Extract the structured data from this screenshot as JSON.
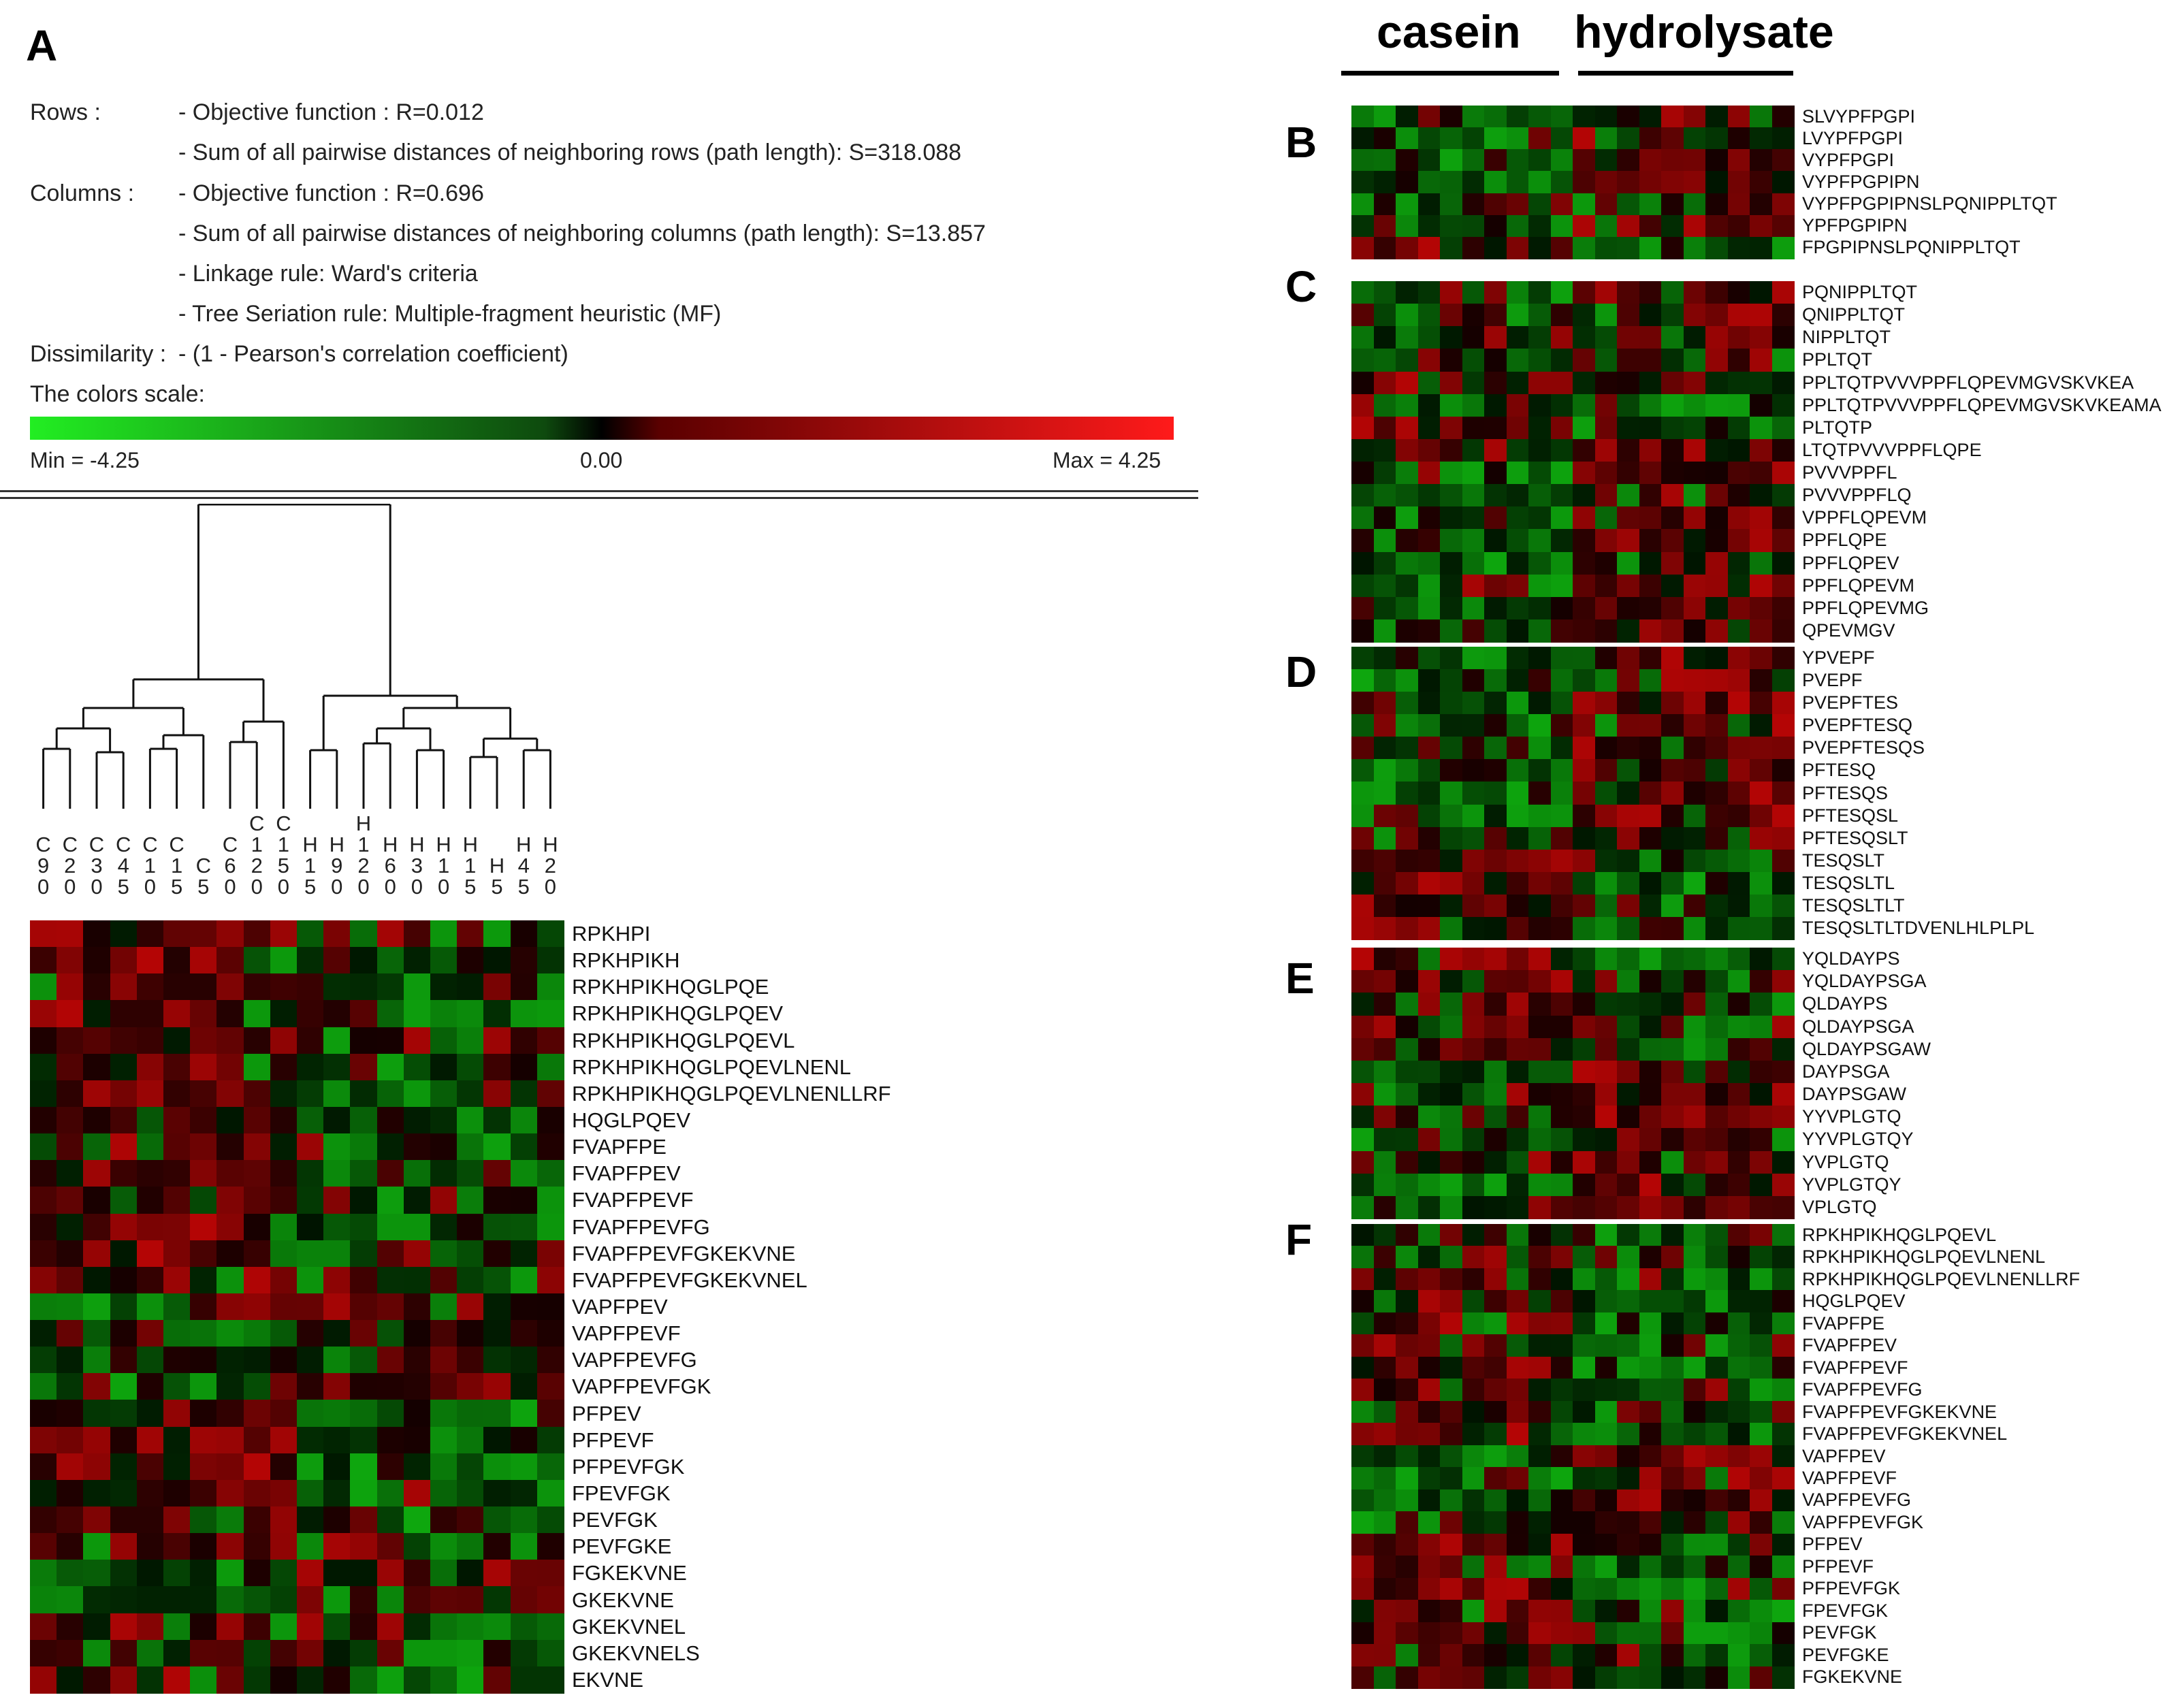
{
  "panels": {
    "A": {
      "letter": "A",
      "info_lines": [
        {
          "key": "Rows :",
          "text": "- Objective function : R=0.012"
        },
        {
          "key": "",
          "text": "- Sum of all pairwise distances of neighboring rows (path length): S=318.088"
        },
        {
          "key": "Columns :",
          "text": "- Objective function : R=0.696"
        },
        {
          "key": "",
          "text": "- Sum of all pairwise distances of neighboring columns (path length): S=13.857"
        },
        {
          "key": "",
          "text": "- Linkage rule:  Ward's criteria"
        },
        {
          "key": "",
          "text": "- Tree Seriation rule:  Multiple-fragment heuristic (MF)"
        },
        {
          "key": "Dissimilarity :",
          "text": "- (1 - Pearson's correlation coefficient)"
        }
      ],
      "scale_title": "The colors scale:",
      "scale_min": "Min = -4.25",
      "scale_mid": "0.00",
      "scale_max": "Max = 4.25"
    },
    "B": {
      "letter": "B"
    },
    "C": {
      "letter": "C"
    },
    "D": {
      "letter": "D"
    },
    "E": {
      "letter": "E"
    },
    "F": {
      "letter": "F"
    }
  },
  "headers": {
    "casein": "casein",
    "hydrolysate": "hydrolysate"
  },
  "chart_data": {
    "type": "heatmap",
    "color_scale": {
      "min": -4.25,
      "mid": 0.0,
      "max": 4.25,
      "low_color": "#22ee22",
      "mid_color": "#000000",
      "high_color": "#ff1a1a"
    },
    "panel_A": {
      "columns": [
        "C90",
        "C20",
        "C30",
        "C45",
        "C10",
        "C15",
        "C5",
        "C60",
        "C120",
        "C150",
        "H15",
        "H90",
        "H120",
        "H60",
        "H30",
        "H10",
        "H15",
        "H5",
        "H45",
        "H20"
      ],
      "column_labels_stacked": [
        [
          "C",
          "9",
          "0"
        ],
        [
          "C",
          "2",
          "0"
        ],
        [
          "C",
          "3",
          "0"
        ],
        [
          "C",
          "4",
          "5"
        ],
        [
          "C",
          "1",
          "0"
        ],
        [
          "C",
          "1",
          "5"
        ],
        [
          "C",
          "5"
        ],
        [
          "C",
          "6",
          "0"
        ],
        [
          "C",
          "1",
          "2",
          "0"
        ],
        [
          "C",
          "1",
          "5",
          "0"
        ],
        [
          "H",
          "1",
          "5"
        ],
        [
          "H",
          "9",
          "0"
        ],
        [
          "H",
          "1",
          "2",
          "0"
        ],
        [
          "H",
          "6",
          "0"
        ],
        [
          "H",
          "3",
          "0"
        ],
        [
          "H",
          "1",
          "0"
        ],
        [
          "H",
          "1",
          "5"
        ],
        [
          "H",
          "5"
        ],
        [
          "H",
          "4",
          "5"
        ],
        [
          "H",
          "2",
          "0"
        ]
      ],
      "rows": [
        "RPKHPI",
        "RPKHPIKH",
        "RPKHPIKHQGLPQE",
        "RPKHPIKHQGLPQEV",
        "RPKHPIKHQGLPQEVL",
        "RPKHPIKHQGLPQEVLNENL",
        "RPKHPIKHQGLPQEVLNENLLRF",
        "HQGLPQEV",
        "FVAPFPE",
        "FVAPFPEV",
        "FVAPFPEVF",
        "FVAPFPEVFG",
        "FVAPFPEVFGKEKVNE",
        "FVAPFPEVFGKEKVNEL",
        "VAPFPEV",
        "VAPFPEVF",
        "VAPFPEVFG",
        "VAPFPEVFGK",
        "PFPEV",
        "PFPEVF",
        "PFPEVFGK",
        "FPEVFGK",
        "PEVFGK",
        "PEVFGKE",
        "FGKEKVNE",
        "GKEKVNE",
        "GKEKVNEL",
        "GKEKVNELS",
        "EKVNE"
      ]
    },
    "panel_B": {
      "rows": [
        "SLVYPFPGPI",
        "LVYPFPGPI",
        "VYPFPGPI",
        "VYPFPGPIPN",
        "VYPFPGPIPNSLPQNIPPLTQT",
        "YPFPGPIPN",
        "FPGPIPNSLPQNIPPLTQT"
      ]
    },
    "panel_C": {
      "rows": [
        "PQNIPPLTQT",
        "QNIPPLTQT",
        "NIPPLTQT",
        "PPLTQT",
        "PPLTQTPVVVPPFLQPEVMGVSKVKEA",
        "PPLTQTPVVVPPFLQPEVMGVSKVKEAMA",
        "PLTQTP",
        "LTQTPVVVPPFLQPE",
        "PVVVPPFL",
        "PVVVPPFLQ",
        "VPPFLQPEVM",
        "PPFLQPE",
        "PPFLQPEV",
        "PPFLQPEVM",
        "PPFLQPEVMG",
        "QPEVMGV"
      ]
    },
    "panel_D": {
      "rows": [
        "YPVEPF",
        "PVEPF",
        "PVEPFTES",
        "PVEPFTESQ",
        "PVEPFTESQS",
        "PFTESQ",
        "PFTESQS",
        "PFTESQSL",
        "PFTESQSLT",
        "TESQSLT",
        "TESQSLTL",
        "TESQSLTLT",
        "TESQSLTLTDVENLHLPLPL"
      ]
    },
    "panel_E": {
      "rows": [
        "YQLDAYPS",
        "YQLDAYPSGA",
        "QLDAYPS",
        "QLDAYPSGA",
        "QLDAYPSGAW",
        "DAYPSGA",
        "DAYPSGAW",
        "YYVPLGTQ",
        "YYVPLGTQY",
        "YVPLGTQ",
        "YVPLGTQY",
        "VPLGTQ"
      ]
    },
    "panel_F": {
      "rows": [
        "RPKHPIKHQGLPQEVL",
        "RPKHPIKHQGLPQEVLNENL",
        "RPKHPIKHQGLPQEVLNENLLRF",
        "HQGLPQEV",
        "FVAPFPE",
        "FVAPFPEV",
        "FVAPFPEVF",
        "FVAPFPEVFG",
        "FVAPFPEVFGKEKVNE",
        "FVAPFPEVFGKEKVNEL",
        "VAPFPEV",
        "VAPFPEVF",
        "VAPFPEVFG",
        "VAPFPEVFGK",
        "PFPEV",
        "PFPEVF",
        "PFPEVFGK",
        "FPEVFGK",
        "PEVFGK",
        "PEVFGKE",
        "FGKEKVNE"
      ]
    }
  }
}
